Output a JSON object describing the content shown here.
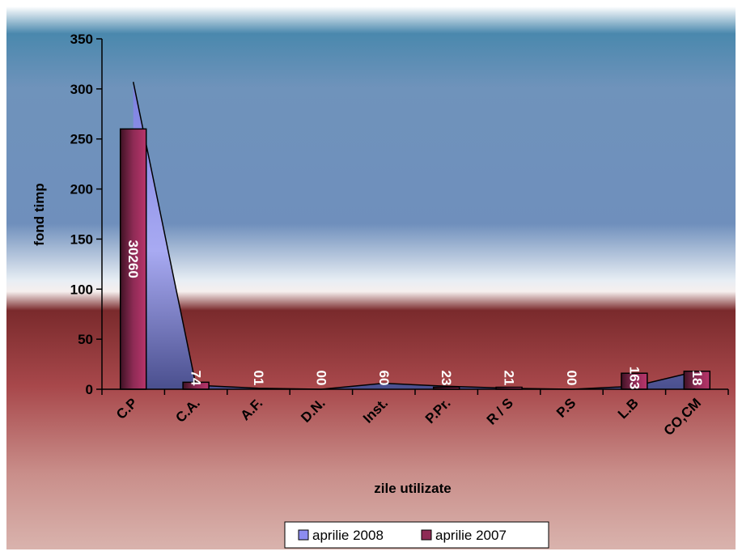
{
  "chart_data": {
    "type": "bar",
    "categories": [
      "C.P",
      "C.A.",
      "A.F.",
      "D.N.",
      "Inst.",
      "P.Pr.",
      "R / S",
      "P.S",
      "L.B",
      "CO,CM"
    ],
    "series": [
      {
        "name": "aprilie 2008",
        "kind": "area",
        "values": [
          307,
          4,
          1,
          0,
          6,
          3,
          1,
          0,
          3,
          18
        ],
        "color": "#8c8cf0"
      },
      {
        "name": "aprilie 2007",
        "kind": "bar",
        "values": [
          260,
          7,
          0,
          0,
          0,
          2,
          2,
          0,
          16,
          18
        ],
        "color": "#8e2b55"
      }
    ],
    "data_labels": [
      "30260",
      "74",
      "01",
      "00",
      "60",
      "23",
      "21",
      "00",
      "163",
      "18"
    ],
    "xlabel": "zile utilizate",
    "ylabel": "fond timp",
    "ylim": [
      0,
      350
    ],
    "yticks": [
      0,
      50,
      100,
      150,
      200,
      250,
      300,
      350
    ],
    "grid": false,
    "legend": "bottom"
  }
}
